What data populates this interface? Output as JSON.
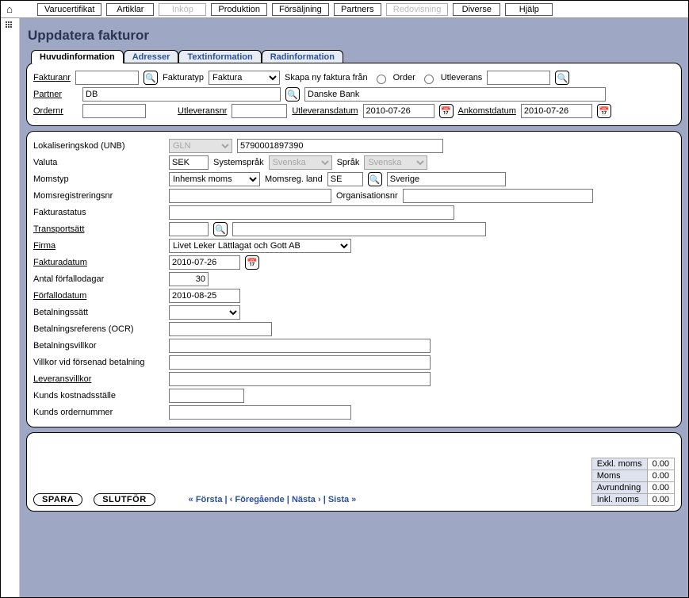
{
  "topTabs": [
    {
      "label": "Varucertifikat",
      "disabled": false
    },
    {
      "label": "Artiklar",
      "disabled": false
    },
    {
      "label": "Inköp",
      "disabled": true
    },
    {
      "label": "Produktion",
      "disabled": false
    },
    {
      "label": "Försäljning",
      "disabled": false
    },
    {
      "label": "Partners",
      "disabled": false
    },
    {
      "label": "Redovisning",
      "disabled": true
    },
    {
      "label": "Diverse",
      "disabled": false
    },
    {
      "label": "Hjälp",
      "disabled": false
    }
  ],
  "pageTitle": "Uppdatera fakturor",
  "subtabs": {
    "huvud": "Huvudinformation",
    "adresser": "Adresser",
    "textinfo": "Textinformation",
    "radinfo": "Radinformation"
  },
  "header": {
    "fakturanr_lbl": "Fakturanr",
    "fakturanr": "",
    "fakturatyp_lbl": "Fakturatyp",
    "fakturatyp": "Faktura",
    "skapa_lbl": "Skapa ny faktura från",
    "order_radio_lbl": "Order",
    "utlev_radio_lbl": "Utleverans",
    "utlev_create_val": "",
    "partner_lbl": "Partner",
    "partner_code": "DB",
    "partner_name": "Danske Bank",
    "ordernr_lbl": "Ordernr",
    "ordernr": "",
    "utleveransnr_lbl": "Utleveransnr",
    "utleveransnr": "",
    "utleveransdatum_lbl": "Utleveransdatum",
    "utleveransdatum": "2010-07-26",
    "ankomstdatum_lbl": "Ankomstdatum",
    "ankomstdatum": "2010-07-26"
  },
  "body": {
    "lokkod_lbl": "Lokaliseringskod (UNB)",
    "lokkod_type": "GLN",
    "lokkod_val": "5790001897390",
    "valuta_lbl": "Valuta",
    "valuta": "SEK",
    "systemsprak_lbl": "Systemspråk",
    "systemsprak": "Svenska",
    "sprak_lbl": "Språk",
    "sprak": "Svenska",
    "momstyp_lbl": "Momstyp",
    "momstyp": "Inhemsk moms",
    "momsreg_land_lbl": "Momsreg. land",
    "momsreg_land": "SE",
    "momsreg_land_name": "Sverige",
    "momsregnr_lbl": "Momsregistreringsnr",
    "momsregnr": "",
    "orgnr_lbl": "Organisationsnr",
    "orgnr": "",
    "fakturastatus_lbl": "Fakturastatus",
    "fakturastatus": "",
    "transportsatt_lbl": "Transportsätt",
    "transportsatt_code": "",
    "transportsatt_name": "",
    "firma_lbl": "Firma",
    "firma": "Livet Leker Lättlagat och Gott AB",
    "fakturadatum_lbl": "Fakturadatum",
    "fakturadatum": "2010-07-26",
    "antal_forfallodagar_lbl": "Antal förfallodagar",
    "antal_forfallodagar": "30",
    "forfallodatum_lbl": "Förfallodatum",
    "forfallodatum": "2010-08-25",
    "betalningssatt_lbl": "Betalningssätt",
    "betalningssatt": "",
    "ocr_lbl": "Betalningsreferens (OCR)",
    "ocr": "",
    "betalningsvillkor_lbl": "Betalningsvillkor",
    "betalningsvillkor": "",
    "forsenad_lbl": "Villkor vid försenad betalning",
    "forsenad": "",
    "leveransvillkor_lbl": "Leveransvillkor",
    "leveransvillkor": "",
    "kostnadsstalle_lbl": "Kunds kostnadsställe",
    "kostnadsstalle": "",
    "kunds_ordernr_lbl": "Kunds ordernummer",
    "kunds_ordernr": ""
  },
  "footer": {
    "spara": "SPARA",
    "slutfor": "SLUTFÖR",
    "nav_first": "« Första",
    "nav_prev": "‹ Föregående",
    "nav_next": "Nästa ›",
    "nav_last": "Sista »",
    "sep": " | ",
    "totals": {
      "exkl_lbl": "Exkl. moms",
      "exkl_val": "0.00",
      "moms_lbl": "Moms",
      "moms_val": "0.00",
      "avr_lbl": "Avrundning",
      "avr_val": "0.00",
      "inkl_lbl": "Inkl. moms",
      "inkl_val": "0.00"
    }
  }
}
